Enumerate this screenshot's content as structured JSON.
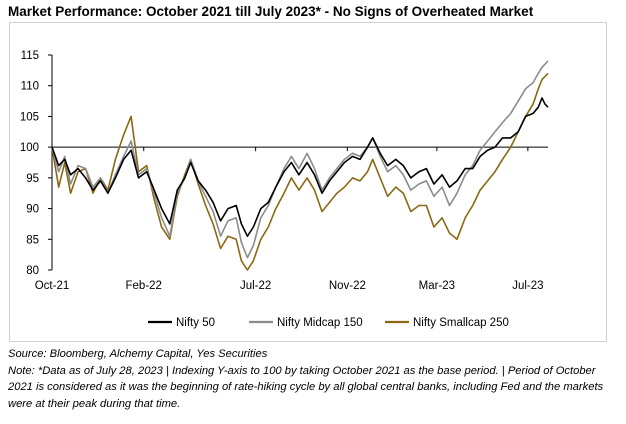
{
  "title": "Market Performance: October 2021 till July 2023* - No Signs of Overheated Market",
  "source": "Source: Bloomberg, Alchemy Capital, Yes Securities",
  "note": "Note: *Data as of July 28, 2023 | Indexing Y-axis to 100 by taking October 2021 as the base period. | Period of October 2021 is considered as it was the beginning of rate-hiking cycle by all global central banks, including Fed and the markets were at their peak during that time.",
  "chart_data": {
    "type": "line",
    "title": "Market Performance: October 2021 till July 2023* - No Signs of Overheated Market",
    "xlabel": "",
    "ylabel": "",
    "ylim": [
      80,
      115
    ],
    "yticks": [
      80,
      85,
      90,
      95,
      100,
      105,
      110,
      115
    ],
    "x_tick_labels": [
      "Oct-21",
      "Feb-22",
      "Jul-22",
      "Nov-22",
      "Mar-23",
      "Jul-23"
    ],
    "x_tick_dates": [
      "2021-10-01",
      "2022-02-01",
      "2022-07-01",
      "2022-11-01",
      "2023-03-01",
      "2023-07-01"
    ],
    "x_end_date": "2023-07-28",
    "grid": false,
    "legend_position": "bottom",
    "series": [
      {
        "name": "Nifty 50",
        "color": "#000000",
        "points": [
          [
            "2021-10-01",
            100
          ],
          [
            "2021-10-10",
            97
          ],
          [
            "2021-10-18",
            98
          ],
          [
            "2021-10-26",
            95.5
          ],
          [
            "2021-11-05",
            96.5
          ],
          [
            "2021-11-15",
            95
          ],
          [
            "2021-11-25",
            93
          ],
          [
            "2021-12-05",
            94.5
          ],
          [
            "2021-12-15",
            92.5
          ],
          [
            "2021-12-25",
            95
          ],
          [
            "2022-01-05",
            98
          ],
          [
            "2022-01-15",
            99.5
          ],
          [
            "2022-01-25",
            95
          ],
          [
            "2022-02-05",
            96
          ],
          [
            "2022-02-15",
            93
          ],
          [
            "2022-02-25",
            90
          ],
          [
            "2022-03-08",
            87.5
          ],
          [
            "2022-03-18",
            93
          ],
          [
            "2022-03-28",
            95
          ],
          [
            "2022-04-05",
            97.5
          ],
          [
            "2022-04-15",
            94.5
          ],
          [
            "2022-04-25",
            93
          ],
          [
            "2022-05-05",
            91
          ],
          [
            "2022-05-15",
            88
          ],
          [
            "2022-05-25",
            90
          ],
          [
            "2022-06-05",
            90.5
          ],
          [
            "2022-06-12",
            87.5
          ],
          [
            "2022-06-20",
            85.5
          ],
          [
            "2022-06-28",
            87
          ],
          [
            "2022-07-08",
            90
          ],
          [
            "2022-07-18",
            91
          ],
          [
            "2022-07-28",
            93.5
          ],
          [
            "2022-08-08",
            96
          ],
          [
            "2022-08-18",
            97.5
          ],
          [
            "2022-08-28",
            95.5
          ],
          [
            "2022-09-08",
            97.5
          ],
          [
            "2022-09-18",
            95.5
          ],
          [
            "2022-09-28",
            92.5
          ],
          [
            "2022-10-08",
            94.5
          ],
          [
            "2022-10-18",
            96
          ],
          [
            "2022-10-28",
            97.5
          ],
          [
            "2022-11-08",
            98.5
          ],
          [
            "2022-11-18",
            98
          ],
          [
            "2022-11-28",
            100
          ],
          [
            "2022-12-05",
            101.5
          ],
          [
            "2022-12-15",
            99
          ],
          [
            "2022-12-25",
            97
          ],
          [
            "2023-01-05",
            98
          ],
          [
            "2023-01-15",
            97
          ],
          [
            "2023-01-25",
            95
          ],
          [
            "2023-02-05",
            96
          ],
          [
            "2023-02-15",
            96.5
          ],
          [
            "2023-02-25",
            94
          ],
          [
            "2023-03-08",
            95.5
          ],
          [
            "2023-03-18",
            93.5
          ],
          [
            "2023-03-28",
            94.5
          ],
          [
            "2023-04-08",
            96.5
          ],
          [
            "2023-04-18",
            96.5
          ],
          [
            "2023-04-28",
            98.5
          ],
          [
            "2023-05-08",
            99.5
          ],
          [
            "2023-05-18",
            100
          ],
          [
            "2023-05-28",
            101.5
          ],
          [
            "2023-06-08",
            101.5
          ],
          [
            "2023-06-18",
            102.5
          ],
          [
            "2023-06-28",
            105
          ],
          [
            "2023-07-08",
            105.5
          ],
          [
            "2023-07-15",
            106.5
          ],
          [
            "2023-07-20",
            108
          ],
          [
            "2023-07-24",
            107
          ],
          [
            "2023-07-28",
            106.5
          ]
        ]
      },
      {
        "name": "Nifty Midcap 150",
        "color": "#8c8c8c",
        "points": [
          [
            "2021-10-01",
            100
          ],
          [
            "2021-10-10",
            96
          ],
          [
            "2021-10-18",
            98.5
          ],
          [
            "2021-10-26",
            94
          ],
          [
            "2021-11-05",
            97
          ],
          [
            "2021-11-15",
            96.5
          ],
          [
            "2021-11-25",
            93.5
          ],
          [
            "2021-12-05",
            95
          ],
          [
            "2021-12-15",
            92.5
          ],
          [
            "2021-12-25",
            95.5
          ],
          [
            "2022-01-05",
            98.5
          ],
          [
            "2022-01-15",
            101
          ],
          [
            "2022-01-25",
            95.5
          ],
          [
            "2022-02-05",
            96.5
          ],
          [
            "2022-02-15",
            92.5
          ],
          [
            "2022-02-25",
            88.5
          ],
          [
            "2022-03-08",
            85.5
          ],
          [
            "2022-03-18",
            92.5
          ],
          [
            "2022-03-28",
            95
          ],
          [
            "2022-04-05",
            98
          ],
          [
            "2022-04-15",
            94.5
          ],
          [
            "2022-04-25",
            92
          ],
          [
            "2022-05-05",
            89.5
          ],
          [
            "2022-05-15",
            85.5
          ],
          [
            "2022-05-25",
            88
          ],
          [
            "2022-06-05",
            88.5
          ],
          [
            "2022-06-12",
            84.5
          ],
          [
            "2022-06-20",
            82
          ],
          [
            "2022-06-28",
            84
          ],
          [
            "2022-07-08",
            88.5
          ],
          [
            "2022-07-18",
            90.5
          ],
          [
            "2022-07-28",
            93.5
          ],
          [
            "2022-08-08",
            96.5
          ],
          [
            "2022-08-18",
            98.5
          ],
          [
            "2022-08-28",
            96.5
          ],
          [
            "2022-09-08",
            99
          ],
          [
            "2022-09-18",
            96.5
          ],
          [
            "2022-09-28",
            93
          ],
          [
            "2022-10-08",
            95
          ],
          [
            "2022-10-18",
            96.5
          ],
          [
            "2022-10-28",
            98
          ],
          [
            "2022-11-08",
            99
          ],
          [
            "2022-11-18",
            98.5
          ],
          [
            "2022-11-28",
            100
          ],
          [
            "2022-12-05",
            101.5
          ],
          [
            "2022-12-15",
            98.5
          ],
          [
            "2022-12-25",
            96
          ],
          [
            "2023-01-05",
            97
          ],
          [
            "2023-01-15",
            95.5
          ],
          [
            "2023-01-25",
            93
          ],
          [
            "2023-02-05",
            94
          ],
          [
            "2023-02-15",
            94.5
          ],
          [
            "2023-02-25",
            92
          ],
          [
            "2023-03-08",
            93.5
          ],
          [
            "2023-03-18",
            90.5
          ],
          [
            "2023-03-28",
            92.5
          ],
          [
            "2023-04-08",
            95.5
          ],
          [
            "2023-04-18",
            97
          ],
          [
            "2023-04-28",
            99.5
          ],
          [
            "2023-05-08",
            101
          ],
          [
            "2023-05-18",
            102.5
          ],
          [
            "2023-05-28",
            104
          ],
          [
            "2023-06-08",
            105.5
          ],
          [
            "2023-06-18",
            107.5
          ],
          [
            "2023-06-28",
            109.5
          ],
          [
            "2023-07-08",
            110.5
          ],
          [
            "2023-07-15",
            112
          ],
          [
            "2023-07-20",
            113
          ],
          [
            "2023-07-24",
            113.5
          ],
          [
            "2023-07-28",
            114
          ]
        ]
      },
      {
        "name": "Nifty Smallcap 250",
        "color": "#8b6914",
        "points": [
          [
            "2021-10-01",
            100
          ],
          [
            "2021-10-10",
            93.5
          ],
          [
            "2021-10-18",
            97.5
          ],
          [
            "2021-10-26",
            92.5
          ],
          [
            "2021-11-05",
            96
          ],
          [
            "2021-11-15",
            96.5
          ],
          [
            "2021-11-25",
            92.5
          ],
          [
            "2021-12-05",
            95
          ],
          [
            "2021-12-15",
            93
          ],
          [
            "2021-12-25",
            98
          ],
          [
            "2022-01-05",
            102
          ],
          [
            "2022-01-15",
            105
          ],
          [
            "2022-01-25",
            96
          ],
          [
            "2022-02-05",
            97
          ],
          [
            "2022-02-15",
            91.5
          ],
          [
            "2022-02-25",
            87
          ],
          [
            "2022-03-08",
            85
          ],
          [
            "2022-03-18",
            92
          ],
          [
            "2022-03-28",
            95.5
          ],
          [
            "2022-04-05",
            98
          ],
          [
            "2022-04-15",
            94
          ],
          [
            "2022-04-25",
            90.5
          ],
          [
            "2022-05-05",
            87.5
          ],
          [
            "2022-05-15",
            83.5
          ],
          [
            "2022-05-25",
            85.5
          ],
          [
            "2022-06-05",
            85
          ],
          [
            "2022-06-12",
            81.5
          ],
          [
            "2022-06-20",
            80
          ],
          [
            "2022-06-28",
            81.5
          ],
          [
            "2022-07-08",
            85
          ],
          [
            "2022-07-18",
            87
          ],
          [
            "2022-07-28",
            90
          ],
          [
            "2022-08-08",
            92.5
          ],
          [
            "2022-08-18",
            95
          ],
          [
            "2022-08-28",
            93
          ],
          [
            "2022-09-08",
            95
          ],
          [
            "2022-09-18",
            93
          ],
          [
            "2022-09-28",
            89.5
          ],
          [
            "2022-10-08",
            91
          ],
          [
            "2022-10-18",
            92.5
          ],
          [
            "2022-10-28",
            93.5
          ],
          [
            "2022-11-08",
            95
          ],
          [
            "2022-11-18",
            94.5
          ],
          [
            "2022-11-28",
            96
          ],
          [
            "2022-12-05",
            98
          ],
          [
            "2022-12-15",
            95
          ],
          [
            "2022-12-25",
            92
          ],
          [
            "2023-01-05",
            93.5
          ],
          [
            "2023-01-15",
            92.5
          ],
          [
            "2023-01-25",
            89.5
          ],
          [
            "2023-02-05",
            90.5
          ],
          [
            "2023-02-15",
            90.5
          ],
          [
            "2023-02-25",
            87
          ],
          [
            "2023-03-08",
            88.5
          ],
          [
            "2023-03-18",
            86
          ],
          [
            "2023-03-28",
            85
          ],
          [
            "2023-04-08",
            88.5
          ],
          [
            "2023-04-18",
            90.5
          ],
          [
            "2023-04-28",
            93
          ],
          [
            "2023-05-08",
            94.5
          ],
          [
            "2023-05-18",
            96
          ],
          [
            "2023-05-28",
            98
          ],
          [
            "2023-06-08",
            100
          ],
          [
            "2023-06-18",
            102.5
          ],
          [
            "2023-06-28",
            105
          ],
          [
            "2023-07-08",
            107
          ],
          [
            "2023-07-15",
            109.5
          ],
          [
            "2023-07-20",
            111
          ],
          [
            "2023-07-24",
            111.5
          ],
          [
            "2023-07-28",
            112
          ]
        ]
      }
    ]
  }
}
